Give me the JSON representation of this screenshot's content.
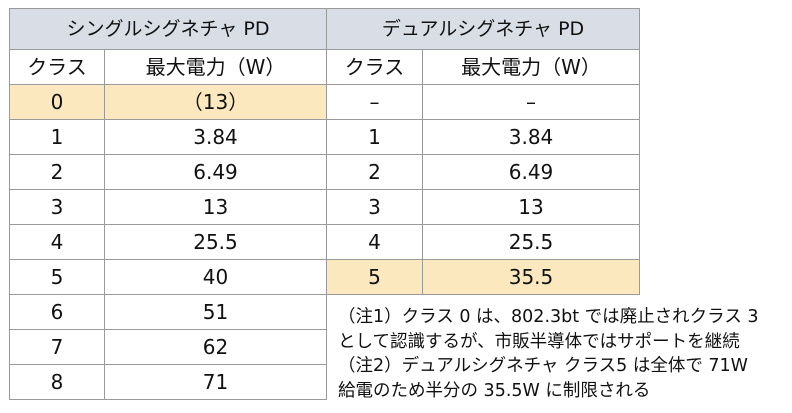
{
  "single": {
    "title": "シングルシグネチャ PD",
    "col_class": "クラス",
    "col_power": "最大電力（W）",
    "rows": [
      {
        "cls": "0",
        "power": "（13）"
      },
      {
        "cls": "1",
        "power": "3.84"
      },
      {
        "cls": "2",
        "power": "6.49"
      },
      {
        "cls": "3",
        "power": "13"
      },
      {
        "cls": "4",
        "power": "25.5"
      },
      {
        "cls": "5",
        "power": "40"
      },
      {
        "cls": "6",
        "power": "51"
      },
      {
        "cls": "7",
        "power": "62"
      },
      {
        "cls": "8",
        "power": "71"
      }
    ]
  },
  "dual": {
    "title": "デュアルシグネチャ PD",
    "col_class": "クラス",
    "col_power": "最大電力（W）",
    "rows": [
      {
        "cls": "–",
        "power": "–"
      },
      {
        "cls": "1",
        "power": "3.84"
      },
      {
        "cls": "2",
        "power": "6.49"
      },
      {
        "cls": "3",
        "power": "13"
      },
      {
        "cls": "4",
        "power": "25.5"
      },
      {
        "cls": "5",
        "power": "35.5"
      }
    ]
  },
  "notes": [
    "（注1）クラス 0 は、802.3bt では廃止されクラス 3",
    "として認識するが、市販半導体ではサポートを継続",
    "（注2）デュアルシグネチャ クラス5 は全体で 71W",
    "給電のため半分の 35.5W に制限される"
  ],
  "colors": {
    "header_bg": "#d9dde6",
    "highlight_bg": "#fbe8bf",
    "border": "#9a9a9a"
  }
}
